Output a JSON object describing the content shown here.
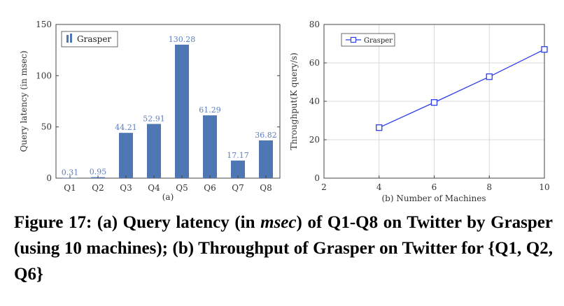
{
  "chart_data": [
    {
      "type": "bar",
      "categories": [
        "Q1",
        "Q2",
        "Q3",
        "Q4",
        "Q5",
        "Q6",
        "Q7",
        "Q8"
      ],
      "series": [
        {
          "name": "Grasper",
          "values": [
            0.31,
            0.95,
            44.21,
            52.91,
            130.28,
            61.29,
            17.17,
            36.82
          ]
        }
      ],
      "value_labels": [
        "0.31",
        "0.95",
        "44.21",
        "52.91",
        "130.28",
        "61.29",
        "17.17",
        "36.82"
      ],
      "ylabel": "Query latency (in msec)",
      "xlabel": "(a)",
      "ylim": [
        0,
        150
      ],
      "yticks": [
        0,
        50,
        100,
        150
      ],
      "legend": "top-left",
      "grid": false,
      "colors": {
        "bar": "#4f77b3",
        "label": "#5b7fbf"
      }
    },
    {
      "type": "line",
      "series": [
        {
          "name": "Grasper",
          "x": [
            4,
            6,
            8,
            10
          ],
          "y": [
            26.3,
            39.4,
            52.8,
            67.0
          ]
        }
      ],
      "xlabel": "(b) Number of Machines",
      "ylabel": "Throughput(K query/s)",
      "xlim": [
        2,
        10
      ],
      "ylim": [
        0,
        80
      ],
      "xticks": [
        2,
        4,
        6,
        8,
        10
      ],
      "yticks": [
        0,
        20,
        40,
        60,
        80
      ],
      "legend": "top-left",
      "grid": true,
      "colors": {
        "line": "#2b3ee8"
      }
    }
  ],
  "caption": {
    "a": "Figure 17: (a) Query latency (in ",
    "b": "msec",
    "c": ") of Q1-Q8 on Twitter by Grasper (using 10 machines); (b) Throughput of Grasper on Twitter for {Q1, Q2, Q6}"
  }
}
